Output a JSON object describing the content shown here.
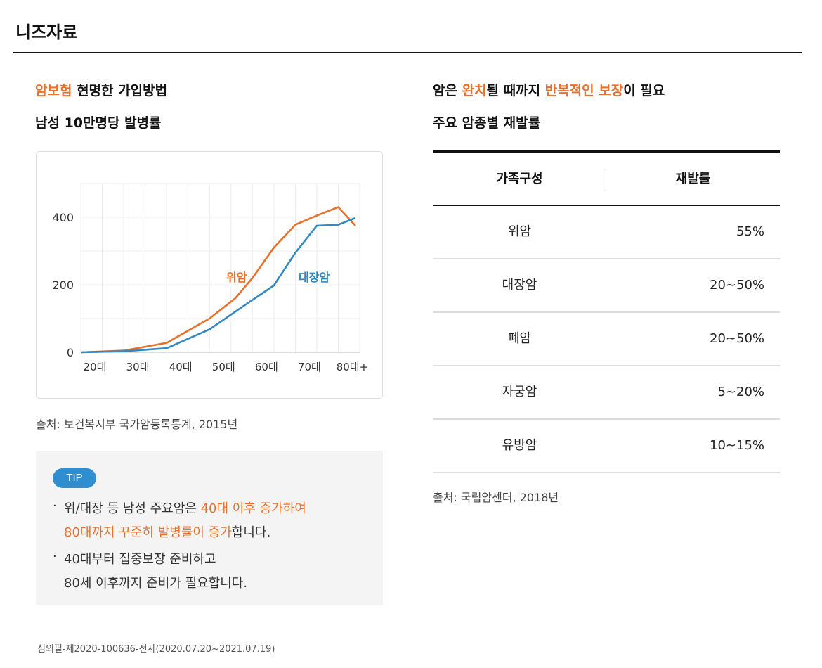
{
  "page": {
    "title": "니즈자료"
  },
  "left": {
    "headline": {
      "accent": "암보험",
      "rest": " 현명한 가입방법"
    },
    "subheadline": "남성 10만명당 발병률",
    "source": "출처: 보건복지부 국가암등록통계, 2015년"
  },
  "chart_data": {
    "type": "line",
    "title": "",
    "xlabel": "",
    "ylabel": "",
    "categories": [
      "20대",
      "30대",
      "40대",
      "50대",
      "60대",
      "70대",
      "80대+"
    ],
    "ylim": [
      0,
      500
    ],
    "y_ticks": [
      0,
      200,
      400
    ],
    "grid": true,
    "series": [
      {
        "name": "위암",
        "color": "#e8702a",
        "points": [
          [
            0,
            0
          ],
          [
            1,
            5
          ],
          [
            2,
            28
          ],
          [
            3,
            100
          ],
          [
            3.6,
            160
          ],
          [
            4,
            220
          ],
          [
            4.5,
            310
          ],
          [
            5,
            378
          ],
          [
            5.5,
            405
          ],
          [
            6,
            430
          ],
          [
            6.4,
            375
          ]
        ]
      },
      {
        "name": "대장암",
        "color": "#3289c2",
        "points": [
          [
            0,
            0
          ],
          [
            1,
            3
          ],
          [
            2,
            12
          ],
          [
            3,
            68
          ],
          [
            4,
            155
          ],
          [
            4.5,
            198
          ],
          [
            5,
            295
          ],
          [
            5.5,
            375
          ],
          [
            6,
            378
          ],
          [
            6.4,
            398
          ]
        ]
      }
    ]
  },
  "tip": {
    "badge": "TIP",
    "bullet": "·",
    "line1_plain": "위/대장 등 남성 주요암은 ",
    "line1_accent": "40대 이후 증가하여",
    "line2_accent": "80대까지 꾸준히 발병률이 증가",
    "line2_plain": "합니다.",
    "line3": "40대부터 집중보장 준비하고",
    "line4": "80세 이후까지 준비가 필요합니다."
  },
  "right": {
    "headline": {
      "p1": "암은 ",
      "a1": "완치",
      "p2": "될 때까지 ",
      "a2": "반복적인 보장",
      "p3": "이 필요"
    },
    "subheadline": "주요 암종별 재발률",
    "table": {
      "headers": [
        "가족구성",
        "재발률"
      ],
      "rows": [
        {
          "name": "위암",
          "rate": "55%"
        },
        {
          "name": "대장암",
          "rate": "20~50%"
        },
        {
          "name": "폐암",
          "rate": "20~50%"
        },
        {
          "name": "자궁암",
          "rate": "5~20%"
        },
        {
          "name": "유방암",
          "rate": "10~15%"
        }
      ]
    },
    "source": "출처: 국립암센터, 2018년"
  },
  "footnote": "심의필-제2020-100636-전사(2020.07.20~2021.07.19)"
}
